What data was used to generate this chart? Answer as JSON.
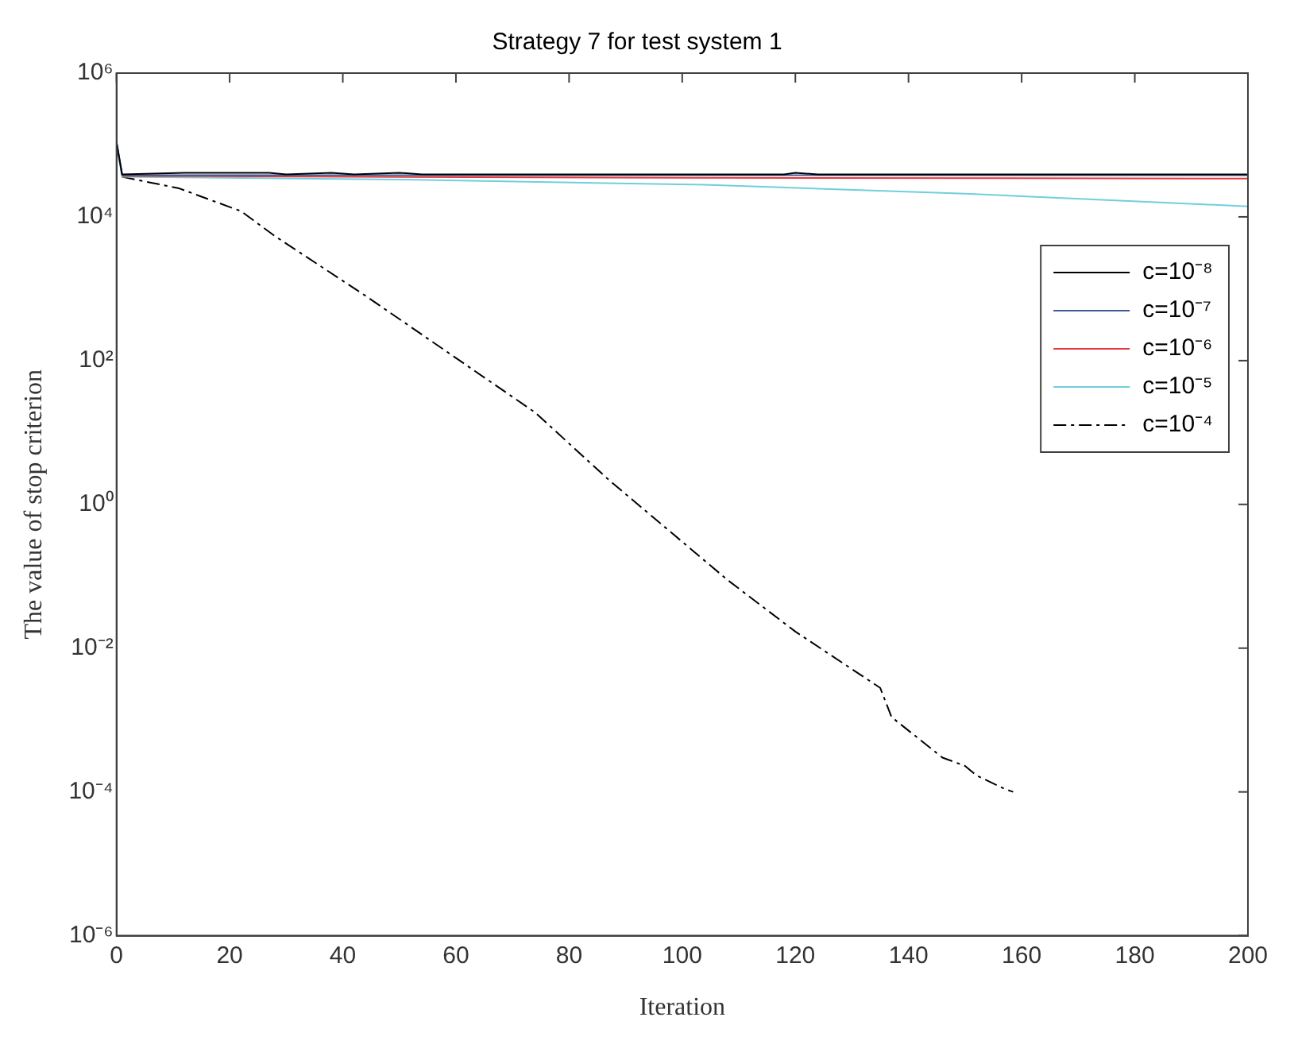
{
  "chart_data": {
    "type": "line",
    "title": "Strategy 7 for test system 1",
    "xlabel": "Iteration",
    "ylabel": "The value of stop criterion",
    "log": "y",
    "grid": false,
    "legend": "right",
    "marker": "none",
    "xlim": [
      0,
      200
    ],
    "xticks": [
      0,
      20,
      40,
      60,
      80,
      100,
      120,
      140,
      160,
      180,
      200
    ],
    "ylim": [
      1e-06,
      1000000
    ],
    "yticks": [
      {
        "value": 1e-06,
        "label": "10⁻⁶"
      },
      {
        "value": 0.0001,
        "label": "10⁻⁴"
      },
      {
        "value": 0.01,
        "label": "10⁻²"
      },
      {
        "value": 1,
        "label": "10⁰"
      },
      {
        "value": 100,
        "label": "10²"
      },
      {
        "value": 10000,
        "label": "10⁴"
      },
      {
        "value": 1000000,
        "label": "10⁶"
      }
    ],
    "series": [
      {
        "name": "c=10⁻⁸",
        "color": "#000000",
        "line_style": "solid",
        "x": [
          0,
          1,
          12,
          27,
          30,
          38,
          42,
          50,
          54,
          118,
          120,
          124,
          200
        ],
        "values": [
          110000,
          39000,
          41000,
          41000,
          39000,
          41000,
          39000,
          41000,
          39000,
          39000,
          41000,
          39000,
          39000
        ]
      },
      {
        "name": "c=10⁻⁷",
        "color": "#3f5a98",
        "line_style": "solid",
        "x": [
          0,
          1,
          60,
          120,
          200
        ],
        "values": [
          110000,
          38000,
          38000,
          38000,
          38000
        ]
      },
      {
        "name": "c=10⁻⁶",
        "color": "#e8383c",
        "line_style": "solid",
        "x": [
          1,
          100,
          200
        ],
        "values": [
          37000,
          35000,
          34000
        ]
      },
      {
        "name": "c=10⁻⁵",
        "color": "#6fcfdc",
        "line_style": "solid",
        "x": [
          0,
          1,
          50,
          104,
          150,
          200
        ],
        "values": [
          100000,
          36000,
          33000,
          28000,
          21000,
          14000
        ]
      },
      {
        "name": "c=10⁻⁴",
        "color": "#000000",
        "line_style": "dashed",
        "x": [
          1,
          11,
          22,
          28,
          44,
          74,
          87,
          108,
          120,
          135,
          137,
          146,
          150,
          152,
          157,
          158.5
        ],
        "values": [
          36000,
          25000,
          12000,
          5400,
          800,
          19,
          2.2,
          0.089,
          0.017,
          0.0028,
          0.0011,
          0.0003,
          0.00023,
          0.00017,
          0.00011,
          0.0001
        ]
      }
    ]
  }
}
